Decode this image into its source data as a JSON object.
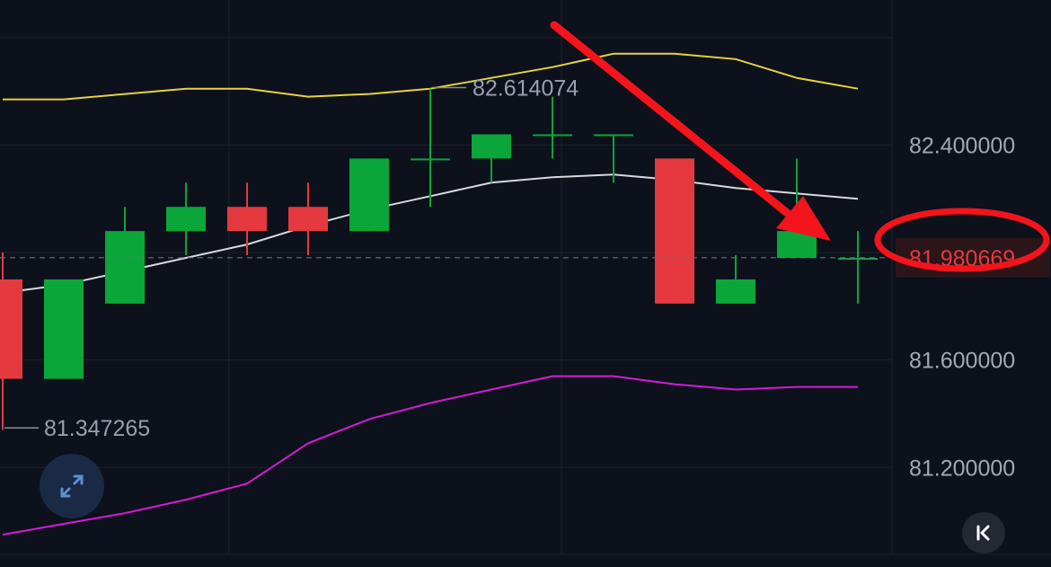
{
  "chart_data": {
    "type": "candlestick",
    "y_axis": {
      "range": [
        80.95,
        82.94
      ],
      "ticks": [
        {
          "value": 82.4,
          "label": "82.400000"
        },
        {
          "value": 81.6,
          "label": "81.600000"
        },
        {
          "value": 81.2,
          "label": "81.200000"
        }
      ],
      "position": "right"
    },
    "grid": true,
    "candles": [
      {
        "open": 81.9,
        "high": 82.0,
        "low": 81.34,
        "close": 81.53
      },
      {
        "open": 81.53,
        "high": 81.9,
        "low": 81.53,
        "close": 81.9
      },
      {
        "open": 81.81,
        "high": 82.17,
        "low": 81.81,
        "close": 82.08
      },
      {
        "open": 82.08,
        "high": 82.26,
        "low": 81.99,
        "close": 82.17
      },
      {
        "open": 82.17,
        "high": 82.26,
        "low": 81.99,
        "close": 82.08
      },
      {
        "open": 82.17,
        "high": 82.26,
        "low": 81.99,
        "close": 82.08
      },
      {
        "open": 82.08,
        "high": 82.35,
        "low": 82.08,
        "close": 82.35
      },
      {
        "open": 82.35,
        "high": 82.61,
        "low": 82.17,
        "close": 82.35
      },
      {
        "open": 82.35,
        "high": 82.44,
        "low": 82.26,
        "close": 82.44
      },
      {
        "open": 82.44,
        "high": 82.58,
        "low": 82.35,
        "close": 82.44
      },
      {
        "open": 82.44,
        "high": 82.44,
        "low": 82.26,
        "close": 82.44
      },
      {
        "open": 82.35,
        "high": 82.35,
        "low": 81.81,
        "close": 81.81
      },
      {
        "open": 81.81,
        "high": 81.99,
        "low": 81.81,
        "close": 81.9
      },
      {
        "open": 81.98,
        "high": 82.35,
        "low": 81.98,
        "close": 82.08
      },
      {
        "open": 81.98,
        "high": 82.08,
        "low": 81.81,
        "close": 81.98
      }
    ],
    "bollinger": {
      "upper": [
        82.57,
        82.57,
        82.59,
        82.61,
        82.61,
        82.58,
        82.59,
        82.61,
        82.65,
        82.69,
        82.74,
        82.74,
        82.72,
        82.65,
        82.61
      ],
      "middle": [
        81.85,
        81.88,
        81.93,
        81.98,
        82.03,
        82.1,
        82.16,
        82.21,
        82.26,
        82.28,
        82.29,
        82.27,
        82.24,
        82.22,
        82.2
      ],
      "lower": [
        80.95,
        80.99,
        81.03,
        81.08,
        81.14,
        81.29,
        81.38,
        81.44,
        81.49,
        81.54,
        81.54,
        81.51,
        81.49,
        81.5,
        81.5
      ]
    },
    "annotations": {
      "high_label": "82.614074",
      "low_label": "81.347265",
      "high_value": 82.614074,
      "low_value": 81.347265
    },
    "current_price": {
      "value": 81.980669,
      "label": "81.980669"
    }
  },
  "colors": {
    "background": "#0c111b",
    "up": "#0aa63a",
    "down": "#e43a3f",
    "upper_band": "#e6d33a",
    "middle_band": "#d9d9de",
    "lower_band": "#d51ad6",
    "grid": "#1b212d",
    "axis_text": "#a3a8b3",
    "annotation_text": "#9a9fab",
    "arrow": "#f3141c"
  },
  "icons": {
    "expand": "expand-diagonal-icon",
    "collapse": "collapse-left-icon"
  }
}
